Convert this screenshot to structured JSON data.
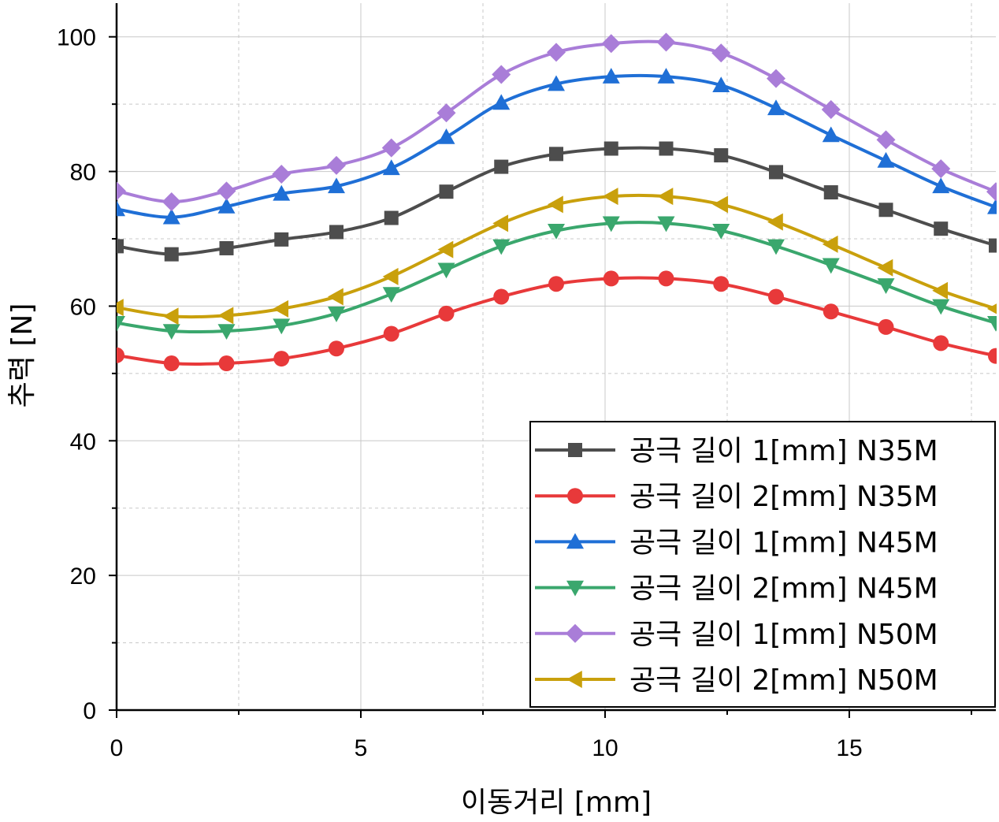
{
  "chart_data": {
    "type": "line",
    "xlabel": "이동거리 [mm]",
    "ylabel": "추력 [N]",
    "xlim": [
      0,
      18
    ],
    "ylim": [
      0,
      105
    ],
    "xticks": [
      0,
      5,
      10,
      15
    ],
    "yticks": [
      0,
      20,
      40,
      60,
      80,
      100
    ],
    "grid": true,
    "legend_position": "bottom-right",
    "x": [
      0,
      1.125,
      2.25,
      3.375,
      4.5,
      5.625,
      6.75,
      7.875,
      9.0,
      10.125,
      11.25,
      12.375,
      13.5,
      14.625,
      15.75,
      16.875,
      18
    ],
    "series": [
      {
        "name": "공극 길이 1[mm] N35M",
        "color": "#4d4d4d",
        "marker": "square",
        "values": [
          68.9,
          67.7,
          68.6,
          69.9,
          71.0,
          73.1,
          77.0,
          80.7,
          82.6,
          83.4,
          83.4,
          82.4,
          79.9,
          76.9,
          74.3,
          71.5,
          69.0
        ]
      },
      {
        "name": "공극 길이 2[mm] N35M",
        "color": "#e8393a",
        "marker": "circle",
        "values": [
          52.7,
          51.5,
          51.5,
          52.2,
          53.7,
          55.9,
          58.9,
          61.4,
          63.3,
          64.1,
          64.1,
          63.3,
          61.4,
          59.2,
          56.9,
          54.5,
          52.6
        ]
      },
      {
        "name": "공극 길이 1[mm] N45M",
        "color": "#1f6fd6",
        "marker": "triangle-up",
        "values": [
          74.4,
          73.2,
          74.8,
          76.7,
          77.8,
          80.5,
          85.1,
          90.2,
          93.0,
          94.1,
          94.1,
          92.8,
          89.4,
          85.4,
          81.6,
          77.8,
          74.7
        ]
      },
      {
        "name": "공극 길이 2[mm] N45M",
        "color": "#3aa76d",
        "marker": "triangle-down",
        "values": [
          57.5,
          56.3,
          56.3,
          57.1,
          58.9,
          61.8,
          65.4,
          68.9,
          71.2,
          72.3,
          72.3,
          71.2,
          68.9,
          66.1,
          63.1,
          60.0,
          57.5
        ]
      },
      {
        "name": "공극 길이 1[mm] N50M",
        "color": "#a97dd8",
        "marker": "diamond",
        "values": [
          77.1,
          75.5,
          77.1,
          79.6,
          80.9,
          83.5,
          88.7,
          94.4,
          97.7,
          99.0,
          99.2,
          97.6,
          93.8,
          89.2,
          84.7,
          80.4,
          77.0
        ]
      },
      {
        "name": "공극 길이 2[mm] N50M",
        "color": "#c9a00c",
        "marker": "triangle-left",
        "values": [
          59.8,
          58.5,
          58.6,
          59.6,
          61.4,
          64.4,
          68.4,
          72.3,
          75.1,
          76.3,
          76.3,
          75.1,
          72.5,
          69.2,
          65.7,
          62.3,
          59.6
        ]
      }
    ]
  }
}
